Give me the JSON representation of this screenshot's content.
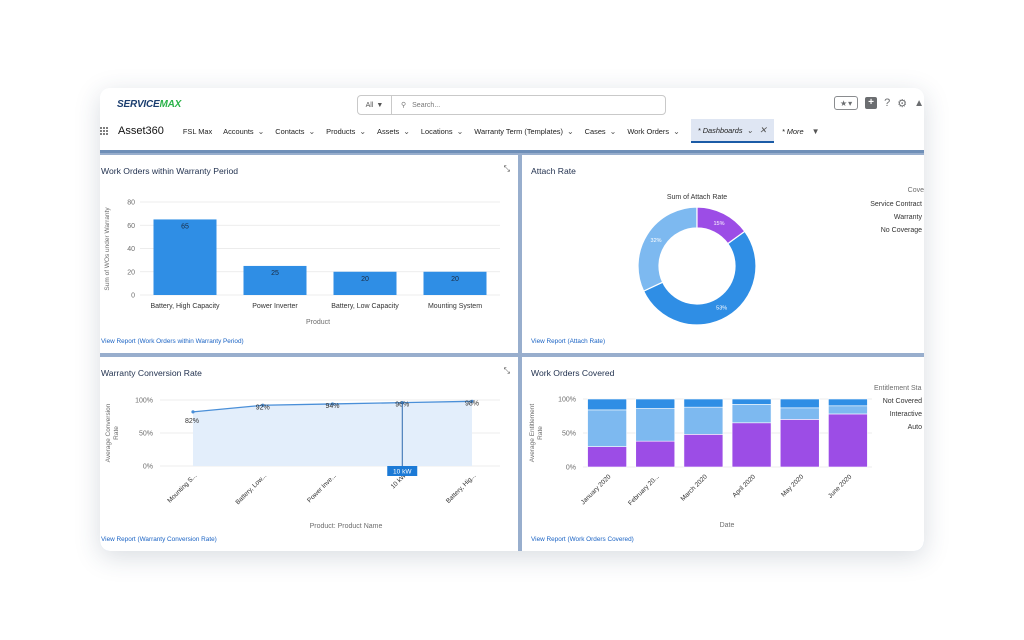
{
  "header": {
    "brand_left": "SERVICE",
    "brand_right": "MAX",
    "search_scope": "All",
    "search_placeholder": "Search...",
    "help_glyph": "?"
  },
  "nav": {
    "app_name": "Asset360",
    "items": [
      {
        "label": "FSL Max",
        "chevron": false
      },
      {
        "label": "Accounts",
        "chevron": true
      },
      {
        "label": "Contacts",
        "chevron": true
      },
      {
        "label": "Products",
        "chevron": true
      },
      {
        "label": "Assets",
        "chevron": true
      },
      {
        "label": "Locations",
        "chevron": true
      },
      {
        "label": "Warranty Term (Templates)",
        "chevron": true
      },
      {
        "label": "Cases",
        "chevron": true
      },
      {
        "label": "Work Orders",
        "chevron": true
      }
    ],
    "active_tab": "* Dashboards",
    "more": "* More"
  },
  "panels": {
    "wo_warranty": {
      "title": "Work Orders within Warranty Period",
      "report_link": "View Report (Work Orders within Warranty Period)"
    },
    "attach_rate": {
      "title": "Attach Rate",
      "report_link": "View Report (Attach Rate)"
    },
    "warranty_conversion": {
      "title": "Warranty Conversion Rate",
      "report_link": "View Report (Warranty Conversion Rate)"
    },
    "wo_covered": {
      "title": "Work Orders Covered",
      "report_link": "View Report (Work Orders Covered)"
    }
  },
  "chart_data": [
    {
      "type": "bar",
      "title": "Work Orders within Warranty Period",
      "categories": [
        "Battery, High Capacity",
        "Power Inverter",
        "Battery, Low Capacity",
        "Mounting System"
      ],
      "values": [
        65,
        25,
        20,
        20
      ],
      "xlabel": "Product",
      "ylabel": "Sum of WOs under Warranty",
      "yticks": [
        0,
        20,
        40,
        60,
        80
      ],
      "ylim": [
        0,
        80
      ],
      "color": "#2f8ee5"
    },
    {
      "type": "pie",
      "title": "Sum of Attach Rate",
      "legend_title": "Cove",
      "legend": [
        "Service Contract",
        "Warranty",
        "No Coverage"
      ],
      "slices": [
        {
          "label": "Service Contract",
          "value": 53,
          "text": "53%",
          "color": "#2f8ee5"
        },
        {
          "label": "Warranty",
          "value": 32,
          "text": "32%",
          "color": "#7db9f0"
        },
        {
          "label": "No Coverage",
          "value": 15,
          "text": "15%",
          "color": "#9c4de6"
        }
      ]
    },
    {
      "type": "area",
      "title": "Warranty Conversion Rate",
      "categories": [
        "Mounting S...",
        "Battery, Low...",
        "Power Inve...",
        "10 kW",
        "Battery, Hig..."
      ],
      "values": [
        82,
        92,
        94,
        96,
        98
      ],
      "labels": [
        "82%",
        "92%",
        "94%",
        "96%",
        "98%"
      ],
      "yticks": [
        "0%",
        "50%",
        "100%"
      ],
      "ylim": [
        0,
        100
      ],
      "xlabel": "Product: Product Name",
      "ylabel": "Average Conversion Rate",
      "tooltip": "10 kW"
    },
    {
      "type": "bar",
      "stacked": true,
      "title": "Work Orders Covered",
      "categories": [
        "January 2020",
        "February 20...",
        "March 2020",
        "April 2020",
        "May 2020",
        "June 2020"
      ],
      "series": [
        {
          "name": "Auto",
          "values": [
            30,
            38,
            48,
            65,
            70,
            78
          ],
          "color": "#9c4de6"
        },
        {
          "name": "Interactive",
          "values": [
            54,
            48,
            40,
            27,
            17,
            12
          ],
          "color": "#7db9f0"
        },
        {
          "name": "Not Covered",
          "values": [
            16,
            14,
            12,
            8,
            13,
            10
          ],
          "color": "#2f8ee5"
        }
      ],
      "legend_title": "Entitlement Sta",
      "legend": [
        "Not Covered",
        "Interactive",
        "Auto"
      ],
      "yticks": [
        "0%",
        "50%",
        "100%"
      ],
      "ylim": [
        0,
        100
      ],
      "xlabel": "Date",
      "ylabel": "Average Entitlement Rate"
    }
  ]
}
